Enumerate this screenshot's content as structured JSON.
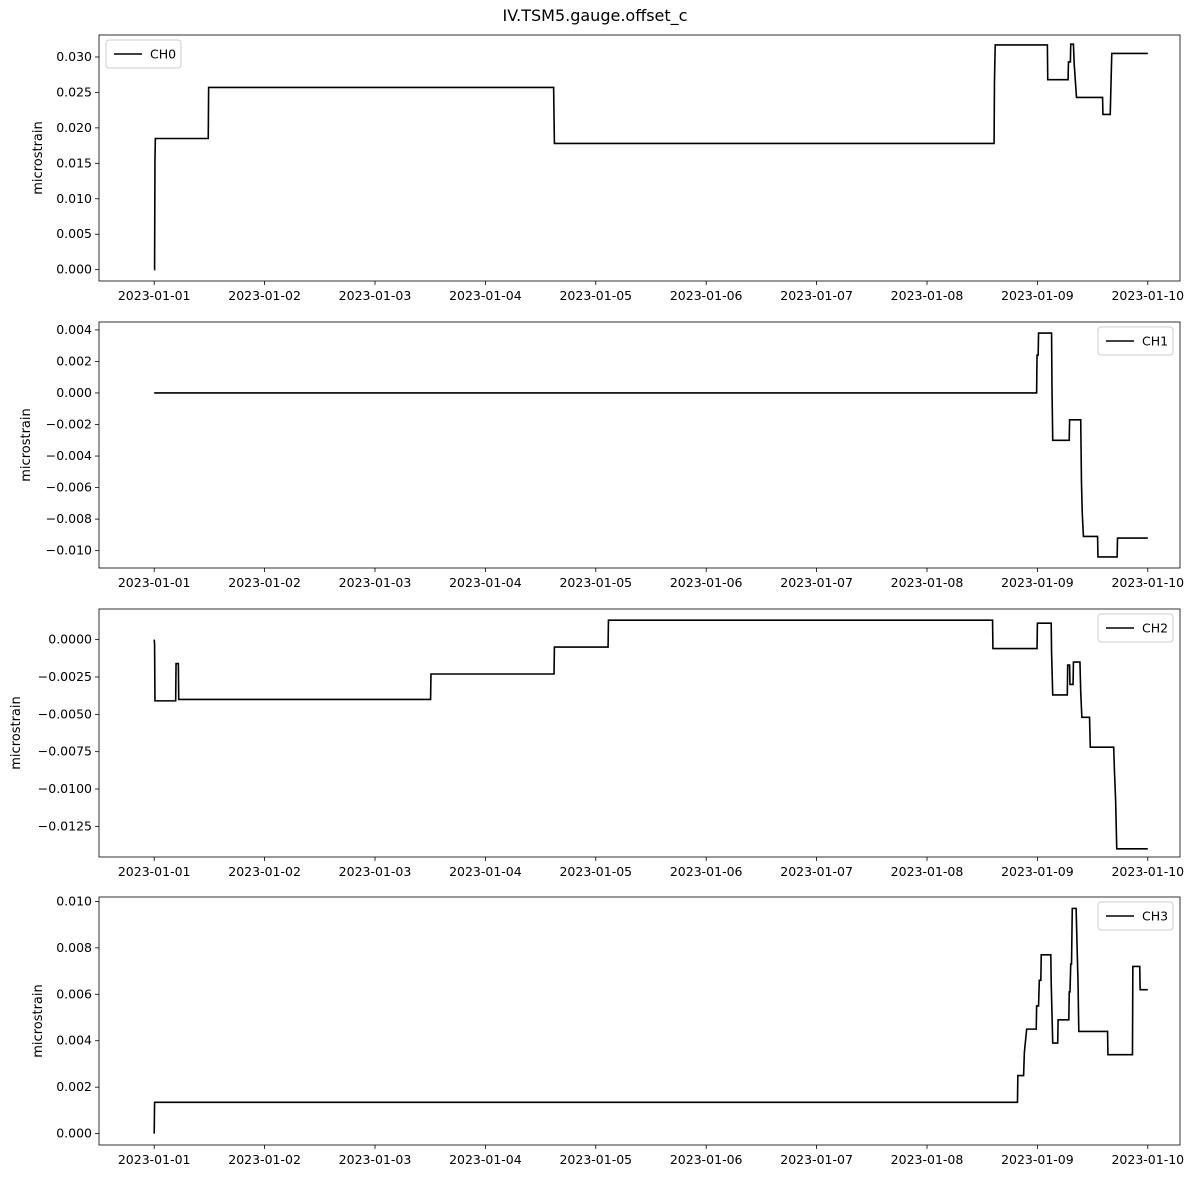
{
  "title": "IV.TSM5.gauge.offset_c",
  "chart_data": [
    {
      "type": "line",
      "title": "",
      "ylabel": "microstrain",
      "xlabel": "",
      "legend": "top-left",
      "xlim": [
        "2022-12-31T12:00",
        "2023-01-10T07:00"
      ],
      "ylim": [
        -0.0016,
        0.0331
      ],
      "yticks": [
        0.0,
        0.005,
        0.01,
        0.015,
        0.02,
        0.025,
        0.03
      ],
      "ytick_labels": [
        "0.000",
        "0.005",
        "0.010",
        "0.015",
        "0.020",
        "0.025",
        "0.030"
      ],
      "xticks": [
        "2023-01-01",
        "2023-01-02",
        "2023-01-03",
        "2023-01-04",
        "2023-01-05",
        "2023-01-06",
        "2023-01-07",
        "2023-01-08",
        "2023-01-09",
        "2023-01-10"
      ],
      "grid": false,
      "series": [
        {
          "name": "CH0",
          "color": "#000000",
          "points": [
            [
              "2023-01-01T00:00",
              0.0
            ],
            [
              "2023-01-01T00:05",
              0.0
            ],
            [
              "2023-01-01T00:10",
              0.0155
            ],
            [
              "2023-01-01T00:15",
              0.0185
            ],
            [
              "2023-01-01T11:45",
              0.0185
            ],
            [
              "2023-01-01T11:50",
              0.0257
            ],
            [
              "2023-01-04T14:50",
              0.0257
            ],
            [
              "2023-01-04T15:00",
              0.0178
            ],
            [
              "2023-01-08T14:35",
              0.0178
            ],
            [
              "2023-01-08T14:40",
              0.0265
            ],
            [
              "2023-01-08T14:45",
              0.0293
            ],
            [
              "2023-01-08T14:50",
              0.0317
            ],
            [
              "2023-01-09T02:10",
              0.0317
            ],
            [
              "2023-01-09T02:15",
              0.0268
            ],
            [
              "2023-01-09T06:40",
              0.0268
            ],
            [
              "2023-01-09T06:45",
              0.0293
            ],
            [
              "2023-01-09T07:10",
              0.0293
            ],
            [
              "2023-01-09T07:15",
              0.0318
            ],
            [
              "2023-01-09T07:50",
              0.0318
            ],
            [
              "2023-01-09T08:00",
              0.029
            ],
            [
              "2023-01-09T08:30",
              0.0243
            ],
            [
              "2023-01-09T14:10",
              0.0243
            ],
            [
              "2023-01-09T14:15",
              0.0219
            ],
            [
              "2023-01-09T15:50",
              0.0219
            ],
            [
              "2023-01-09T16:10",
              0.0305
            ],
            [
              "2023-01-10T00:00",
              0.0305
            ]
          ]
        }
      ]
    },
    {
      "type": "line",
      "title": "",
      "ylabel": "microstrain",
      "xlabel": "",
      "legend": "top-right",
      "xlim": [
        "2022-12-31T12:00",
        "2023-01-10T07:00"
      ],
      "ylim": [
        -0.0111,
        0.0045
      ],
      "yticks": [
        -0.01,
        -0.008,
        -0.006,
        -0.004,
        -0.002,
        0.0,
        0.002,
        0.004
      ],
      "ytick_labels": [
        "−0.010",
        "−0.008",
        "−0.006",
        "−0.004",
        "−0.002",
        "0.000",
        "0.002",
        "0.004"
      ],
      "xticks": [
        "2023-01-01",
        "2023-01-02",
        "2023-01-03",
        "2023-01-04",
        "2023-01-05",
        "2023-01-06",
        "2023-01-07",
        "2023-01-08",
        "2023-01-09",
        "2023-01-10"
      ],
      "grid": false,
      "series": [
        {
          "name": "CH1",
          "color": "#000000",
          "points": [
            [
              "2023-01-01T00:00",
              0.0
            ],
            [
              "2023-01-08T23:50",
              0.0
            ],
            [
              "2023-01-08T23:55",
              0.0024
            ],
            [
              "2023-01-09T00:10",
              0.0024
            ],
            [
              "2023-01-09T00:15",
              0.0038
            ],
            [
              "2023-01-09T03:05",
              0.0038
            ],
            [
              "2023-01-09T03:10",
              0.0004
            ],
            [
              "2023-01-09T03:20",
              -0.003
            ],
            [
              "2023-01-09T06:55",
              -0.003
            ],
            [
              "2023-01-09T07:00",
              -0.0017
            ],
            [
              "2023-01-09T09:25",
              -0.0017
            ],
            [
              "2023-01-09T09:35",
              -0.0057
            ],
            [
              "2023-01-09T09:45",
              -0.0076
            ],
            [
              "2023-01-09T10:00",
              -0.0091
            ],
            [
              "2023-01-09T13:05",
              -0.0091
            ],
            [
              "2023-01-09T13:10",
              -0.0104
            ],
            [
              "2023-01-09T17:20",
              -0.0104
            ],
            [
              "2023-01-09T17:25",
              -0.0092
            ],
            [
              "2023-01-10T00:00",
              -0.0092
            ]
          ]
        }
      ]
    },
    {
      "type": "line",
      "title": "",
      "ylabel": "microstrain",
      "xlabel": "",
      "legend": "top-right",
      "xlim": [
        "2022-12-31T12:00",
        "2023-01-10T07:00"
      ],
      "ylim": [
        -0.01455,
        0.00205
      ],
      "yticks": [
        -0.0125,
        -0.01,
        -0.0075,
        -0.005,
        -0.0025,
        0.0
      ],
      "ytick_labels": [
        "−0.0125",
        "−0.0100",
        "−0.0075",
        "−0.0050",
        "−0.0025",
        "0.0000"
      ],
      "xticks": [
        "2023-01-01",
        "2023-01-02",
        "2023-01-03",
        "2023-01-04",
        "2023-01-05",
        "2023-01-06",
        "2023-01-07",
        "2023-01-08",
        "2023-01-09",
        "2023-01-10"
      ],
      "grid": false,
      "series": [
        {
          "name": "CH2",
          "color": "#000000",
          "points": [
            [
              "2023-01-01T00:00",
              0.0
            ],
            [
              "2023-01-01T00:05",
              -0.0003
            ],
            [
              "2023-01-01T00:10",
              -0.0041
            ],
            [
              "2023-01-01T04:40",
              -0.0041
            ],
            [
              "2023-01-01T04:45",
              -0.0016
            ],
            [
              "2023-01-01T05:15",
              -0.0016
            ],
            [
              "2023-01-01T05:20",
              -0.004
            ],
            [
              "2023-01-03T12:05",
              -0.004
            ],
            [
              "2023-01-03T12:10",
              -0.0023
            ],
            [
              "2023-01-04T14:55",
              -0.0023
            ],
            [
              "2023-01-04T15:00",
              -0.0005
            ],
            [
              "2023-01-05T02:40",
              -0.0005
            ],
            [
              "2023-01-05T02:45",
              0.0013
            ],
            [
              "2023-01-08T14:15",
              0.0013
            ],
            [
              "2023-01-08T14:20",
              -0.0006
            ],
            [
              "2023-01-08T23:55",
              -0.0006
            ],
            [
              "2023-01-09T00:00",
              0.0011
            ],
            [
              "2023-01-09T03:00",
              0.0011
            ],
            [
              "2023-01-09T03:05",
              -0.0009
            ],
            [
              "2023-01-09T03:20",
              -0.0037
            ],
            [
              "2023-01-09T06:30",
              -0.0037
            ],
            [
              "2023-01-09T06:35",
              -0.0017
            ],
            [
              "2023-01-09T07:00",
              -0.0017
            ],
            [
              "2023-01-09T07:05",
              -0.003
            ],
            [
              "2023-01-09T07:45",
              -0.003
            ],
            [
              "2023-01-09T07:50",
              -0.0015
            ],
            [
              "2023-01-09T09:15",
              -0.0015
            ],
            [
              "2023-01-09T09:25",
              -0.0035
            ],
            [
              "2023-01-09T09:40",
              -0.0052
            ],
            [
              "2023-01-09T11:20",
              -0.0052
            ],
            [
              "2023-01-09T11:30",
              -0.0072
            ],
            [
              "2023-01-09T16:35",
              -0.0072
            ],
            [
              "2023-01-09T16:45",
              -0.0088
            ],
            [
              "2023-01-09T17:00",
              -0.0107
            ],
            [
              "2023-01-09T17:15",
              -0.014
            ],
            [
              "2023-01-10T00:00",
              -0.014
            ]
          ]
        }
      ]
    },
    {
      "type": "line",
      "title": "",
      "ylabel": "microstrain",
      "xlabel": "",
      "legend": "top-right",
      "xlim": [
        "2022-12-31T12:00",
        "2023-01-10T07:00"
      ],
      "ylim": [
        -0.00049,
        0.01019
      ],
      "yticks": [
        0.0,
        0.002,
        0.004,
        0.006,
        0.008,
        0.01
      ],
      "ytick_labels": [
        "0.000",
        "0.002",
        "0.004",
        "0.006",
        "0.008",
        "0.010"
      ],
      "xticks": [
        "2023-01-01",
        "2023-01-02",
        "2023-01-03",
        "2023-01-04",
        "2023-01-05",
        "2023-01-06",
        "2023-01-07",
        "2023-01-08",
        "2023-01-09",
        "2023-01-10"
      ],
      "grid": false,
      "series": [
        {
          "name": "CH3",
          "color": "#000000",
          "points": [
            [
              "2023-01-01T00:00",
              0.0
            ],
            [
              "2023-01-01T00:05",
              0.00135
            ],
            [
              "2023-01-08T19:40",
              0.00135
            ],
            [
              "2023-01-08T19:45",
              0.0025
            ],
            [
              "2023-01-08T21:00",
              0.0025
            ],
            [
              "2023-01-08T21:10",
              0.0035
            ],
            [
              "2023-01-08T21:40",
              0.0045
            ],
            [
              "2023-01-08T23:45",
              0.0045
            ],
            [
              "2023-01-08T23:50",
              0.0055
            ],
            [
              "2023-01-09T00:15",
              0.0055
            ],
            [
              "2023-01-09T00:25",
              0.0066
            ],
            [
              "2023-01-09T00:45",
              0.0066
            ],
            [
              "2023-01-09T00:50",
              0.0077
            ],
            [
              "2023-01-09T02:55",
              0.0077
            ],
            [
              "2023-01-09T03:00",
              0.0065
            ],
            [
              "2023-01-09T03:10",
              0.0052
            ],
            [
              "2023-01-09T03:20",
              0.0039
            ],
            [
              "2023-01-09T04:25",
              0.0039
            ],
            [
              "2023-01-09T04:30",
              0.0049
            ],
            [
              "2023-01-09T06:50",
              0.0049
            ],
            [
              "2023-01-09T06:55",
              0.0061
            ],
            [
              "2023-01-09T07:05",
              0.0061
            ],
            [
              "2023-01-09T07:15",
              0.0073
            ],
            [
              "2023-01-09T07:25",
              0.0073
            ],
            [
              "2023-01-09T07:35",
              0.0097
            ],
            [
              "2023-01-09T08:25",
              0.0097
            ],
            [
              "2023-01-09T08:35",
              0.0084
            ],
            [
              "2023-01-09T08:50",
              0.0065
            ],
            [
              "2023-01-09T09:00",
              0.0044
            ],
            [
              "2023-01-09T15:15",
              0.0044
            ],
            [
              "2023-01-09T15:20",
              0.0034
            ],
            [
              "2023-01-09T20:40",
              0.0034
            ],
            [
              "2023-01-09T20:45",
              0.0072
            ],
            [
              "2023-01-09T22:15",
              0.0072
            ],
            [
              "2023-01-09T22:20",
              0.0062
            ],
            [
              "2023-01-10T00:00",
              0.0062
            ]
          ]
        }
      ]
    }
  ]
}
